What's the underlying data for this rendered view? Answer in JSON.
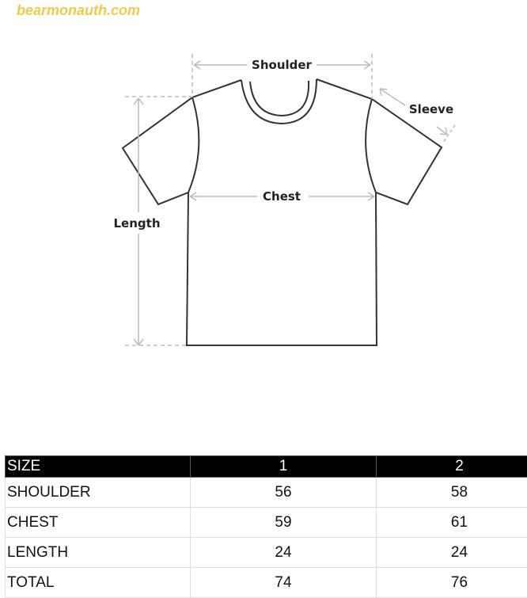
{
  "watermark": "bearmonauth.com",
  "diagram": {
    "labels": {
      "shoulder": "Shoulder",
      "sleeve": "Sleeve",
      "chest": "Chest",
      "length": "Length"
    }
  },
  "size_table": {
    "header": [
      "SIZE",
      "1",
      "2"
    ],
    "rows": [
      [
        "SHOULDER",
        "56",
        "58"
      ],
      [
        "CHEST",
        "59",
        "61"
      ],
      [
        "LENGTH",
        "24",
        "24"
      ],
      [
        "TOTAL",
        "74",
        "76"
      ]
    ]
  }
}
